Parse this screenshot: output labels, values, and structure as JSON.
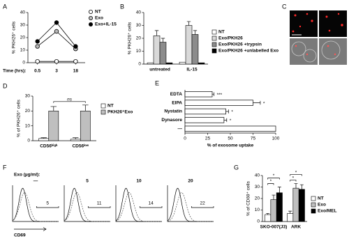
{
  "chart_data": [
    {
      "label": "A",
      "type": "line",
      "y_label": "% PKH26⁺ cells",
      "x_label": "Time (hrs):",
      "categories": [
        "0.5",
        "3",
        "18"
      ],
      "series": [
        {
          "name": "NT",
          "color": "#ffffff",
          "values": [
            1,
            1,
            1
          ]
        },
        {
          "name": "Exo",
          "color": "#bbbbbb",
          "values": [
            13,
            25,
            11
          ]
        },
        {
          "name": "Exo+IL-15",
          "color": "#000000",
          "values": [
            17,
            32,
            13
          ]
        }
      ],
      "ylim": [
        0,
        40
      ],
      "yticks": [
        0,
        10,
        20,
        30,
        40
      ],
      "legend": "top-right"
    },
    {
      "label": "B",
      "type": "bar",
      "y_label": "% PKH26⁺ cells",
      "categories": [
        "untreated",
        "IL-15"
      ],
      "series": [
        {
          "name": "NT",
          "color": "#ffffff",
          "values": [
            1,
            1.5
          ]
        },
        {
          "name": "Exo/PKH26",
          "color": "#d9d9d9",
          "values": [
            22,
            30
          ],
          "errors": [
            4,
            3
          ]
        },
        {
          "name": "Exo/PKH26 +trypsin",
          "color": "#8c8c8c",
          "values": [
            17,
            23
          ],
          "errors": [
            3,
            3
          ]
        },
        {
          "name": "Exo/PKH26 +unlabelled Exo",
          "color": "#000000",
          "values": [
            1,
            1
          ]
        }
      ],
      "ylim": [
        0,
        40
      ],
      "yticks": [
        0,
        10,
        20,
        30,
        40
      ],
      "legend": "right"
    },
    {
      "label": "D",
      "type": "bar",
      "y_label": "% of PKH26⁺ cells",
      "categories": [
        "CD56ʰⁱᵍʰ",
        "CD56ˡᵒʷ"
      ],
      "series": [
        {
          "name": "NT",
          "color": "#ffffff",
          "values": [
            1.5,
            1
          ],
          "errors": [
            0.5,
            1
          ]
        },
        {
          "name": "PKH26⁺Exo",
          "color": "#bfbfbf",
          "values": [
            20,
            20
          ],
          "errors": [
            3,
            4
          ]
        }
      ],
      "ylim": [
        0,
        30
      ],
      "yticks": [
        0,
        10,
        20,
        30
      ],
      "legend": "right",
      "significance": [
        {
          "categories": [
            0,
            1
          ],
          "series": 1,
          "text": "ns"
        }
      ]
    },
    {
      "label": "E",
      "type": "hbar",
      "x_label": "% of exosome uptake",
      "categories": [
        "EDTA",
        "EIPA",
        "Nystatin",
        "Dynasore",
        "—"
      ],
      "values": [
        30,
        75,
        45,
        43,
        100
      ],
      "errors": [
        2,
        8,
        3,
        3,
        null
      ],
      "color": "#ffffff",
      "annotations": [
        "***",
        "*",
        "*",
        "*",
        null
      ],
      "xlim": [
        0,
        100
      ],
      "xticks": [
        0,
        25,
        50,
        75,
        100
      ]
    },
    {
      "label": "G",
      "type": "bar",
      "y_label": "% of CD69⁺ cells",
      "categories": [
        "SKO-007(J3)",
        "ARK"
      ],
      "series": [
        {
          "name": "NT",
          "color": "#ffffff",
          "values": [
            6,
            7
          ],
          "errors": [
            1,
            2
          ]
        },
        {
          "name": "Exo",
          "color": "#bfbfbf",
          "values": [
            19,
            29
          ],
          "errors": [
            4,
            4
          ]
        },
        {
          "name": "Exo/MEL",
          "color": "#000000",
          "values": [
            25,
            28
          ],
          "errors": [
            5,
            4
          ]
        }
      ],
      "ylim": [
        0,
        40
      ],
      "yticks": [
        0,
        10,
        20,
        30,
        40
      ],
      "legend": "right",
      "significance": [
        {
          "category": 0,
          "series": [
            0,
            1
          ],
          "text": "*"
        },
        {
          "category": 0,
          "series": [
            0,
            2
          ],
          "text": "*"
        },
        {
          "category": 1,
          "series": [
            0,
            1
          ],
          "text": "*"
        },
        {
          "category": 1,
          "series": [
            0,
            2
          ],
          "text": "*"
        }
      ]
    }
  ],
  "panel_c": {
    "label": "C"
  },
  "panel_f": {
    "label": "F",
    "title": "Exo (µg/ml):",
    "doses": [
      "—",
      "5",
      "10",
      "20"
    ],
    "gate_percentages": [
      5,
      11,
      14,
      22
    ],
    "x_label": "CD69"
  }
}
